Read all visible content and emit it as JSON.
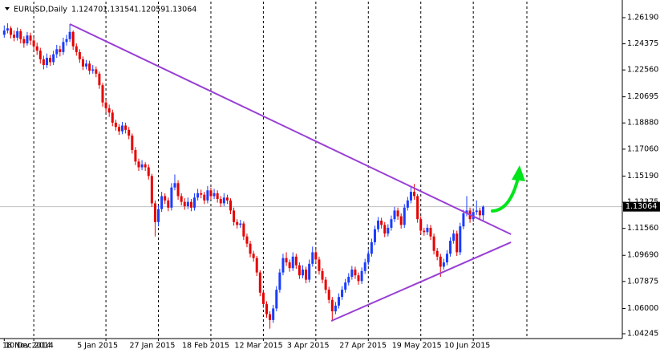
{
  "chart_data": {
    "type": "candlestick",
    "header": {
      "symbol": "EURUSD,Daily",
      "open": "1.12470",
      "high": "1.13154",
      "low": "1.12059",
      "close": "1.13064"
    },
    "current_price": {
      "value": 1.13064,
      "label": "1.13064"
    },
    "up_color": "#1a3cff",
    "down_color": "#e60000",
    "trendline_color": "#9a3fd5",
    "ylim": [
      1.03911,
      1.27304
    ],
    "yticks": [
      {
        "value": 1.2619,
        "label": "1.26190"
      },
      1.24375,
      {
        "value": 1.2256,
        "label": "1.22560"
      },
      1.20695,
      {
        "value": 1.1888,
        "label": "1.18880"
      },
      {
        "value": 1.1706,
        "label": "1.17060"
      },
      {
        "value": 1.1519,
        "label": "1.15190"
      },
      1.13375,
      {
        "value": 1.1156,
        "label": "1.11560"
      },
      {
        "value": 1.0969,
        "label": "1.09690"
      },
      1.07875,
      {
        "value": 1.06,
        "label": "1.06000"
      },
      1.04245
    ],
    "categories": [
      "18 Nov 2014",
      null,
      null,
      null,
      null,
      null,
      null,
      null,
      null,
      "10 Dec 2014",
      null,
      null,
      null,
      null,
      null,
      null,
      null,
      null,
      null,
      null,
      null,
      null,
      null,
      null,
      null,
      null,
      null,
      null,
      null,
      null,
      null,
      "5 Jan 2015",
      null,
      null,
      null,
      null,
      null,
      null,
      null,
      null,
      null,
      null,
      null,
      null,
      null,
      null,
      null,
      "27 Jan 2015",
      null,
      null,
      null,
      null,
      null,
      null,
      null,
      null,
      null,
      null,
      null,
      null,
      null,
      null,
      null,
      "18 Feb 2015",
      null,
      null,
      null,
      null,
      null,
      null,
      null,
      null,
      null,
      null,
      null,
      null,
      null,
      null,
      null,
      "12 Mar 2015",
      null,
      null,
      null,
      null,
      null,
      null,
      null,
      null,
      null,
      null,
      null,
      null,
      null,
      null,
      null,
      "3 Apr 2015",
      null,
      null,
      null,
      null,
      null,
      null,
      null,
      null,
      null,
      null,
      null,
      null,
      null,
      null,
      null,
      "27 Apr 2015",
      null,
      null,
      null,
      null,
      null,
      null,
      null,
      null,
      null,
      null,
      null,
      null,
      null,
      null,
      null,
      "19 May 2015",
      null,
      null,
      null,
      null,
      null,
      null,
      null,
      null,
      null,
      null,
      null,
      null,
      null,
      null,
      null,
      "10 Jun 2015",
      null,
      null,
      null
    ],
    "ohlc": [
      [
        1.25,
        1.2565,
        1.248,
        1.253
      ],
      [
        1.253,
        1.258,
        1.251,
        1.2545
      ],
      [
        1.2545,
        1.256,
        1.2475,
        1.25
      ],
      [
        1.25,
        1.253,
        1.2455,
        1.248
      ],
      [
        1.248,
        1.255,
        1.246,
        1.2525
      ],
      [
        1.2525,
        1.254,
        1.244,
        1.247
      ],
      [
        1.247,
        1.249,
        1.241,
        1.244
      ],
      [
        1.244,
        1.252,
        1.2425,
        1.2495
      ],
      [
        1.2495,
        1.2515,
        1.243,
        1.246
      ],
      [
        1.246,
        1.248,
        1.2395,
        1.242
      ],
      [
        1.242,
        1.2445,
        1.236,
        1.239
      ],
      [
        1.239,
        1.241,
        1.23,
        1.233
      ],
      [
        1.233,
        1.2355,
        1.226,
        1.229
      ],
      [
        1.229,
        1.237,
        1.227,
        1.234
      ],
      [
        1.234,
        1.236,
        1.2285,
        1.231
      ],
      [
        1.231,
        1.239,
        1.229,
        1.2365
      ],
      [
        1.2365,
        1.243,
        1.234,
        1.24
      ],
      [
        1.24,
        1.2425,
        1.235,
        1.238
      ],
      [
        1.238,
        1.248,
        1.236,
        1.245
      ],
      [
        1.245,
        1.25,
        1.2425,
        1.247
      ],
      [
        1.247,
        1.2575,
        1.245,
        1.252
      ],
      [
        1.252,
        1.253,
        1.2395,
        1.242
      ],
      [
        1.242,
        1.244,
        1.2355,
        1.238
      ],
      [
        1.238,
        1.24,
        1.2305,
        1.233
      ],
      [
        1.233,
        1.235,
        1.2255,
        1.228
      ],
      [
        1.228,
        1.2325,
        1.226,
        1.23
      ],
      [
        1.23,
        1.232,
        1.2225,
        1.225
      ],
      [
        1.225,
        1.229,
        1.223,
        1.226
      ],
      [
        1.226,
        1.228,
        1.2205,
        1.223
      ],
      [
        1.223,
        1.2245,
        1.2125,
        1.215
      ],
      [
        1.215,
        1.2165,
        1.2,
        1.203
      ],
      [
        1.203,
        1.205,
        1.196,
        1.199
      ],
      [
        1.199,
        1.2015,
        1.193,
        1.196
      ],
      [
        1.196,
        1.198,
        1.1865,
        1.189
      ],
      [
        1.189,
        1.191,
        1.1835,
        1.186
      ],
      [
        1.186,
        1.188,
        1.1805,
        1.183
      ],
      [
        1.183,
        1.1895,
        1.181,
        1.187
      ],
      [
        1.187,
        1.189,
        1.1815,
        1.184
      ],
      [
        1.184,
        1.186,
        1.1775,
        1.18
      ],
      [
        1.18,
        1.1815,
        1.1675,
        1.17
      ],
      [
        1.17,
        1.172,
        1.1595,
        1.162
      ],
      [
        1.162,
        1.164,
        1.1555,
        1.158
      ],
      [
        1.158,
        1.163,
        1.156,
        1.16
      ],
      [
        1.16,
        1.1615,
        1.1555,
        1.158
      ],
      [
        1.158,
        1.16,
        1.1495,
        1.152
      ],
      [
        1.152,
        1.1535,
        1.1305,
        1.133
      ],
      [
        1.133,
        1.135,
        1.11,
        1.12
      ],
      [
        1.12,
        1.1315,
        1.117,
        1.129
      ],
      [
        1.129,
        1.141,
        1.127,
        1.138
      ],
      [
        1.138,
        1.14,
        1.1325,
        1.135
      ],
      [
        1.135,
        1.137,
        1.1275,
        1.13
      ],
      [
        1.13,
        1.147,
        1.128,
        1.144
      ],
      [
        1.144,
        1.153,
        1.142,
        1.147
      ],
      [
        1.147,
        1.149,
        1.1355,
        1.138
      ],
      [
        1.138,
        1.14,
        1.1315,
        1.134
      ],
      [
        1.134,
        1.1365,
        1.1285,
        1.131
      ],
      [
        1.131,
        1.137,
        1.129,
        1.134
      ],
      [
        1.134,
        1.136,
        1.1275,
        1.13
      ],
      [
        1.13,
        1.14,
        1.128,
        1.137
      ],
      [
        1.137,
        1.143,
        1.135,
        1.14
      ],
      [
        1.14,
        1.1425,
        1.1365,
        1.139
      ],
      [
        1.139,
        1.141,
        1.1325,
        1.135
      ],
      [
        1.135,
        1.145,
        1.133,
        1.142
      ],
      [
        1.142,
        1.144,
        1.1355,
        1.138
      ],
      [
        1.138,
        1.143,
        1.136,
        1.14
      ],
      [
        1.14,
        1.142,
        1.1335,
        1.136
      ],
      [
        1.136,
        1.138,
        1.1305,
        1.133
      ],
      [
        1.133,
        1.14,
        1.131,
        1.137
      ],
      [
        1.137,
        1.139,
        1.1325,
        1.135
      ],
      [
        1.135,
        1.1365,
        1.1255,
        1.128
      ],
      [
        1.128,
        1.13,
        1.1175,
        1.12
      ],
      [
        1.12,
        1.122,
        1.1155,
        1.118
      ],
      [
        1.118,
        1.1215,
        1.116,
        1.119
      ],
      [
        1.119,
        1.1205,
        1.1075,
        1.11
      ],
      [
        1.11,
        1.112,
        1.1025,
        1.105
      ],
      [
        1.105,
        1.107,
        1.0955,
        1.098
      ],
      [
        1.098,
        1.1,
        1.0925,
        1.095
      ],
      [
        1.095,
        1.0965,
        1.0825,
        1.085
      ],
      [
        1.085,
        1.0865,
        1.0685,
        1.071
      ],
      [
        1.071,
        1.073,
        1.0605,
        1.063
      ],
      [
        1.063,
        1.065,
        1.0535,
        1.056
      ],
      [
        1.056,
        1.058,
        1.046,
        1.052
      ],
      [
        1.052,
        1.0625,
        1.05,
        1.06
      ],
      [
        1.06,
        1.0755,
        1.058,
        1.073
      ],
      [
        1.073,
        1.0875,
        1.071,
        1.085
      ],
      [
        1.085,
        1.098,
        1.083,
        1.095
      ],
      [
        1.095,
        1.099,
        1.0895,
        1.092
      ],
      [
        1.092,
        1.094,
        1.0855,
        1.088
      ],
      [
        1.088,
        1.099,
        1.086,
        1.096
      ],
      [
        1.096,
        1.098,
        1.0875,
        1.09
      ],
      [
        1.09,
        1.092,
        1.0805,
        1.083
      ],
      [
        1.083,
        1.09,
        1.081,
        1.087
      ],
      [
        1.087,
        1.089,
        1.0775,
        1.08
      ],
      [
        1.08,
        1.094,
        1.078,
        1.091
      ],
      [
        1.091,
        1.103,
        1.089,
        1.099
      ],
      [
        1.099,
        1.101,
        1.0915,
        1.094
      ],
      [
        1.094,
        1.096,
        1.0835,
        1.086
      ],
      [
        1.086,
        1.088,
        1.0775,
        1.08
      ],
      [
        1.08,
        1.082,
        1.0705,
        1.073
      ],
      [
        1.073,
        1.075,
        1.0635,
        1.066
      ],
      [
        1.066,
        1.068,
        1.051,
        1.058
      ],
      [
        1.058,
        1.0645,
        1.056,
        1.062
      ],
      [
        1.062,
        1.0705,
        1.06,
        1.068
      ],
      [
        1.068,
        1.0755,
        1.066,
        1.073
      ],
      [
        1.073,
        1.0805,
        1.071,
        1.078
      ],
      [
        1.078,
        1.0845,
        1.076,
        1.082
      ],
      [
        1.082,
        1.0895,
        1.08,
        1.087
      ],
      [
        1.087,
        1.089,
        1.0805,
        1.083
      ],
      [
        1.083,
        1.085,
        1.0765,
        1.079
      ],
      [
        1.079,
        1.0885,
        1.077,
        1.086
      ],
      [
        1.086,
        1.0945,
        1.084,
        1.092
      ],
      [
        1.092,
        1.1005,
        1.09,
        1.098
      ],
      [
        1.098,
        1.1085,
        1.096,
        1.106
      ],
      [
        1.106,
        1.1175,
        1.104,
        1.115
      ],
      [
        1.115,
        1.1235,
        1.113,
        1.121
      ],
      [
        1.121,
        1.123,
        1.1155,
        1.118
      ],
      [
        1.118,
        1.12,
        1.1095,
        1.112
      ],
      [
        1.112,
        1.1185,
        1.11,
        1.116
      ],
      [
        1.116,
        1.1245,
        1.114,
        1.122
      ],
      [
        1.122,
        1.1305,
        1.12,
        1.128
      ],
      [
        1.128,
        1.13,
        1.1215,
        1.124
      ],
      [
        1.124,
        1.126,
        1.1155,
        1.118
      ],
      [
        1.118,
        1.1325,
        1.116,
        1.13
      ],
      [
        1.13,
        1.1375,
        1.128,
        1.135
      ],
      [
        1.135,
        1.144,
        1.133,
        1.141
      ],
      [
        1.141,
        1.1465,
        1.1355,
        1.138
      ],
      [
        1.138,
        1.1395,
        1.1195,
        1.122
      ],
      [
        1.122,
        1.124,
        1.1115,
        1.114
      ],
      [
        1.114,
        1.116,
        1.1105,
        1.113
      ],
      [
        1.113,
        1.1185,
        1.111,
        1.116
      ],
      [
        1.116,
        1.118,
        1.1075,
        1.11
      ],
      [
        1.11,
        1.112,
        1.0975,
        1.1
      ],
      [
        1.1,
        1.102,
        1.0935,
        1.096
      ],
      [
        1.096,
        1.098,
        1.082,
        1.089
      ],
      [
        1.089,
        1.0945,
        1.087,
        1.092
      ],
      [
        1.092,
        1.1005,
        1.09,
        1.098
      ],
      [
        1.098,
        1.1095,
        1.096,
        1.107
      ],
      [
        1.107,
        1.1145,
        1.105,
        1.112
      ],
      [
        1.112,
        1.114,
        1.0965,
        1.099
      ],
      [
        1.099,
        1.1195,
        1.097,
        1.117
      ],
      [
        1.117,
        1.1285,
        1.115,
        1.126
      ],
      [
        1.126,
        1.138,
        1.124,
        1.128
      ],
      [
        1.128,
        1.13,
        1.1195,
        1.122
      ],
      [
        1.122,
        1.1295,
        1.12,
        1.127
      ],
      [
        1.127,
        1.135,
        1.125,
        1.128
      ],
      [
        1.128,
        1.13,
        1.122,
        1.1247
      ],
      [
        1.1247,
        1.13154,
        1.12059,
        1.13064
      ]
    ],
    "trendlines": [
      {
        "x": [
          20,
          154.5
        ],
        "y": [
          1.25744,
          1.11152
        ]
      },
      {
        "x": [
          99.7,
          154.5
        ],
        "y": [
          1.05137,
          1.10595
        ]
      }
    ]
  }
}
